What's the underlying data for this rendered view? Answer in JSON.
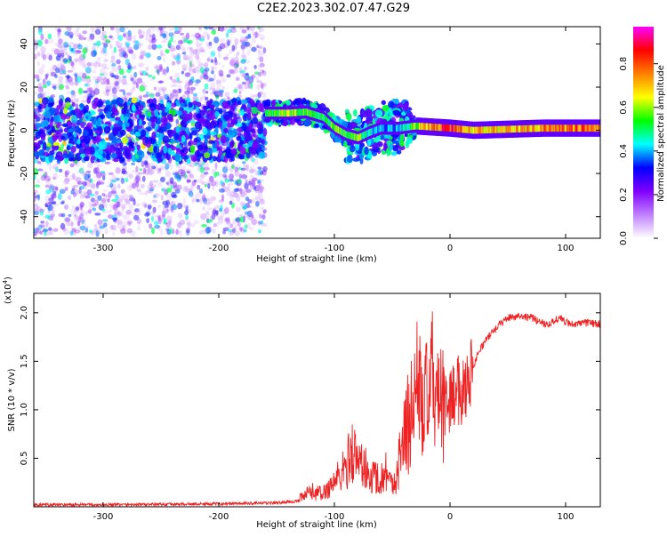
{
  "figure": {
    "title": "C2E2.2023.302.07.47.G29"
  },
  "chart_data": [
    {
      "type": "heatmap",
      "xlabel": "Height of straight line (km)",
      "ylabel": "Frequency (Hz)",
      "xlim": [
        -360,
        130
      ],
      "ylim": [
        -50,
        48
      ],
      "x_ticks": [
        -300,
        -200,
        -100,
        0,
        100
      ],
      "y_ticks": [
        -40,
        -20,
        0,
        20,
        40
      ],
      "x_tick_labels": [
        "-300",
        "-200",
        "-100",
        "0",
        "100"
      ],
      "y_tick_labels": [
        "-40",
        "-20",
        "0",
        "20",
        "40"
      ],
      "colorbar": {
        "label": "Normalized spectral amplitude",
        "range": [
          0,
          0.97
        ],
        "ticks": [
          0.0,
          0.2,
          0.4,
          0.6,
          0.8
        ],
        "tick_labels": [
          "0.0",
          "0.2",
          "0.4",
          "0.6",
          "0.8"
        ],
        "colors": [
          "#ffffff",
          "#c080ff",
          "#8000ff",
          "#0000ff",
          "#00ffff",
          "#00ff00",
          "#ffff00",
          "#ff8000",
          "#ff0000",
          "#ff00ff"
        ]
      },
      "noise_region": {
        "x_range": [
          -360,
          -160
        ],
        "freq_spread": 48
      },
      "ridge": [
        {
          "x": -160,
          "y": 8,
          "amp": 0.55
        },
        {
          "x": -140,
          "y": 8,
          "amp": 0.6
        },
        {
          "x": -125,
          "y": 8.5,
          "amp": 0.55
        },
        {
          "x": -110,
          "y": 6,
          "amp": 0.5
        },
        {
          "x": -100,
          "y": 1,
          "amp": 0.6
        },
        {
          "x": -90,
          "y": -2,
          "amp": 0.55
        },
        {
          "x": -80,
          "y": -3.5,
          "amp": 0.6
        },
        {
          "x": -70,
          "y": -1,
          "amp": 0.45
        },
        {
          "x": -60,
          "y": 1,
          "amp": 0.4
        },
        {
          "x": -45,
          "y": 1,
          "amp": 0.4
        },
        {
          "x": -30,
          "y": 2,
          "amp": 0.6
        },
        {
          "x": -15,
          "y": 1.5,
          "amp": 0.8
        },
        {
          "x": 0,
          "y": 1,
          "amp": 0.85
        },
        {
          "x": 20,
          "y": 0,
          "amp": 0.7
        },
        {
          "x": 50,
          "y": 0.5,
          "amp": 0.7
        },
        {
          "x": 80,
          "y": 1,
          "amp": 0.75
        },
        {
          "x": 100,
          "y": 1,
          "amp": 0.8
        },
        {
          "x": 130,
          "y": 1,
          "amp": 0.8
        }
      ]
    },
    {
      "type": "line",
      "xlabel": "Height of straight line (km)",
      "ylabel": "SNR (10 * v/v)",
      "y_multiplier_label": "(x10",
      "y_multiplier_exponent": "4",
      "y_multiplier_close": ")",
      "xlim": [
        -360,
        130
      ],
      "ylim": [
        0,
        2.2
      ],
      "x_ticks": [
        -300,
        -200,
        -100,
        0,
        100
      ],
      "y_ticks": [
        0.5,
        1.0,
        1.5,
        2.0
      ],
      "x_tick_labels": [
        "-300",
        "-200",
        "-100",
        "0",
        "100"
      ],
      "y_tick_labels": [
        "0.5",
        "1.0",
        "1.5",
        "2.0"
      ],
      "series": [
        {
          "color": "#ee2222",
          "x": [
            -360,
            -300,
            -200,
            -150,
            -130,
            -120,
            -110,
            -100,
            -95,
            -90,
            -85,
            -80,
            -75,
            -70,
            -65,
            -60,
            -55,
            -50,
            -45,
            -40,
            -35,
            -30,
            -28,
            -25,
            -22,
            -20,
            -17,
            -15,
            -12,
            -10,
            -5,
            0,
            5,
            10,
            15,
            20,
            25,
            30,
            40,
            50,
            60,
            70,
            80,
            85,
            90,
            95,
            100,
            110,
            120,
            130
          ],
          "y": [
            0.02,
            0.02,
            0.03,
            0.04,
            0.06,
            0.12,
            0.1,
            0.2,
            0.25,
            0.3,
            0.45,
            0.35,
            0.35,
            0.2,
            0.25,
            0.2,
            0.3,
            0.15,
            0.3,
            0.6,
            0.9,
            1.2,
            1.4,
            1.1,
            1.0,
            1.2,
            1.1,
            1.5,
            1.0,
            1.1,
            1.0,
            1.1,
            1.2,
            1.2,
            1.3,
            1.45,
            1.6,
            1.7,
            1.85,
            1.95,
            1.97,
            1.95,
            1.9,
            1.88,
            1.92,
            1.95,
            1.9,
            1.88,
            1.9,
            1.88
          ]
        }
      ]
    }
  ]
}
